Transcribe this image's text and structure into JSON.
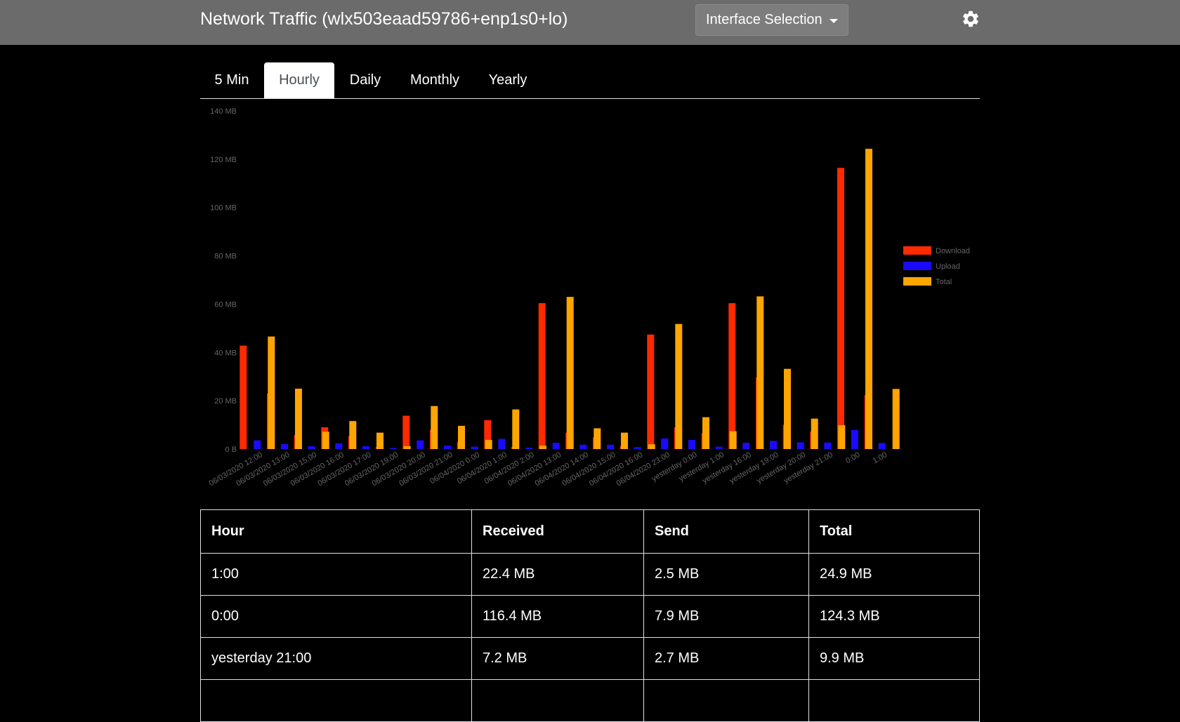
{
  "header": {
    "title": "Network Traffic (wlx503eaad59786+enp1s0+lo)",
    "interface_button": "Interface Selection"
  },
  "tabs": [
    {
      "label": "5 Min",
      "active": false
    },
    {
      "label": "Hourly",
      "active": true
    },
    {
      "label": "Daily",
      "active": false
    },
    {
      "label": "Monthly",
      "active": false
    },
    {
      "label": "Yearly",
      "active": false
    }
  ],
  "colors": {
    "download": "#ff2a00",
    "upload": "#1a0bff",
    "total": "#ffa500"
  },
  "chart_data": {
    "type": "bar",
    "title": "",
    "xlabel": "",
    "ylabel": "",
    "ylim": [
      0,
      140
    ],
    "y_ticks": [
      "0 B",
      "20 MB",
      "40 MB",
      "60 MB",
      "80 MB",
      "100 MB",
      "120 MB",
      "140 MB"
    ],
    "legend_position": "right",
    "categories": [
      "06/03/2020 12:00",
      "06/03/2020 13:00",
      "06/03/2020 15:00",
      "06/03/2020 16:00",
      "06/03/2020 17:00",
      "06/03/2020 19:00",
      "06/03/2020 20:00",
      "06/03/2020 21:00",
      "06/04/2020 0:00",
      "06/04/2020 1:00",
      "06/04/2020 2:00",
      "06/04/2020 13:00",
      "06/04/2020 14:00",
      "06/04/2020 15:00",
      "06/04/2020 16:00",
      "06/04/2020 23:00",
      "yesterday 0:00",
      "yesterday 1:00",
      "yesterday 16:00",
      "yesterday 19:00",
      "yesterday 20:00",
      "yesterday 21:00",
      "0:00",
      "1:00"
    ],
    "series": [
      {
        "name": "Download",
        "values": [
          42.8,
          23.0,
          5.8,
          9.0,
          5.4,
          0.8,
          13.8,
          8.0,
          3.0,
          12.0,
          0.8,
          60.4,
          6.8,
          4.8,
          1.2,
          47.4,
          9.0,
          6.6,
          60.4,
          29.6,
          10.0,
          7.2,
          116.4,
          22.4
        ]
      },
      {
        "name": "Upload",
        "values": [
          3.6,
          2.0,
          1.2,
          2.4,
          1.2,
          0.4,
          3.6,
          1.4,
          1.0,
          4.2,
          0.6,
          2.6,
          1.8,
          1.8,
          0.8,
          4.4,
          3.8,
          1.0,
          2.6,
          3.4,
          2.8,
          2.7,
          7.9,
          2.5
        ]
      },
      {
        "name": "Total",
        "values": [
          46.6,
          25.0,
          7.2,
          11.6,
          6.8,
          1.2,
          17.8,
          9.6,
          3.8,
          16.4,
          1.4,
          63.0,
          8.6,
          6.8,
          2.0,
          51.8,
          13.2,
          7.4,
          63.2,
          33.2,
          12.6,
          9.9,
          124.3,
          24.9
        ]
      }
    ]
  },
  "table": {
    "headers": [
      "Hour",
      "Received",
      "Send",
      "Total"
    ],
    "rows": [
      [
        "1:00",
        "22.4 MB",
        "2.5 MB",
        "24.9 MB"
      ],
      [
        "0:00",
        "116.4 MB",
        "7.9 MB",
        "124.3 MB"
      ],
      [
        "yesterday 21:00",
        "7.2 MB",
        "2.7 MB",
        "9.9 MB"
      ],
      [
        "",
        "",
        "",
        ""
      ]
    ]
  }
}
